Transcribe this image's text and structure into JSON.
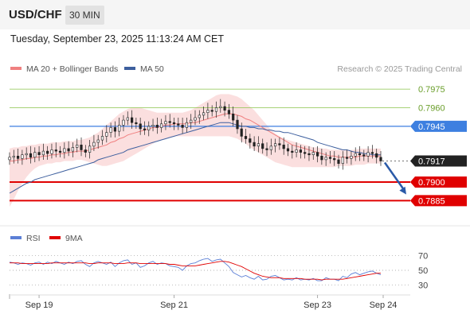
{
  "header": {
    "symbol": "USD/CHF",
    "interval": "30 MIN",
    "datetime": "Tuesday, September 23, 2025 11:13:24 AM CET"
  },
  "colors": {
    "bollinger": "#f4a3a3",
    "ma20": "#f08080",
    "ma50": "#3d5f9e",
    "resistance": "#8bc34a",
    "pivot": "#3d7fe0",
    "support": "#e00000",
    "current": "#222222",
    "up_candle": "#ffffff",
    "down_candle": "#222222",
    "arrow": "#2a5aa8",
    "rsi": "#5b7fd6",
    "rsi_ma": "#e00000"
  },
  "chart_data": [
    {
      "type": "candlestick",
      "legend": [
        {
          "label": "MA 20 + Bollinger Bands",
          "color": "#f08080"
        },
        {
          "label": "MA 50",
          "color": "#3d5f9e"
        }
      ],
      "credit": "Research © 2025 Trading Central",
      "x_ticks": [
        {
          "label": "Sep 19",
          "index": 7
        },
        {
          "label": "Sep 21",
          "index": 39
        },
        {
          "label": "Sep 23",
          "index": 73
        },
        {
          "label": "Sep 24",
          "index": 88
        }
      ],
      "ylim": [
        0.7866,
        0.7986
      ],
      "levels": [
        {
          "value": 0.7975,
          "label": "0.7975",
          "kind": "resistance"
        },
        {
          "value": 0.796,
          "label": "0.7960",
          "kind": "resistance"
        },
        {
          "value": 0.7945,
          "label": "0.7945",
          "kind": "pivot"
        },
        {
          "value": 0.7917,
          "label": "0.7917",
          "kind": "current"
        },
        {
          "value": 0.79,
          "label": "0.7900",
          "kind": "support"
        },
        {
          "value": 0.7885,
          "label": "0.7885",
          "kind": "support"
        }
      ],
      "close": [
        0.792,
        0.7921,
        0.7919,
        0.7922,
        0.7923,
        0.792,
        0.7924,
        0.7922,
        0.7925,
        0.7923,
        0.7926,
        0.7925,
        0.7924,
        0.7927,
        0.7925,
        0.7928,
        0.793,
        0.7926,
        0.7924,
        0.7929,
        0.7932,
        0.7934,
        0.7937,
        0.794,
        0.7944,
        0.7941,
        0.7946,
        0.795,
        0.7952,
        0.7948,
        0.7947,
        0.7943,
        0.7942,
        0.7945,
        0.7946,
        0.7944,
        0.7947,
        0.7949,
        0.7948,
        0.7947,
        0.7946,
        0.7944,
        0.7948,
        0.795,
        0.7952,
        0.7954,
        0.7956,
        0.7958,
        0.7957,
        0.796,
        0.7961,
        0.7958,
        0.7955,
        0.795,
        0.7943,
        0.7937,
        0.7935,
        0.7932,
        0.7929,
        0.7931,
        0.7927,
        0.7926,
        0.7929,
        0.7931,
        0.793,
        0.7927,
        0.7925,
        0.7924,
        0.7926,
        0.7924,
        0.7923,
        0.7922,
        0.7924,
        0.7921,
        0.7918,
        0.792,
        0.7919,
        0.7918,
        0.7915,
        0.792,
        0.7919,
        0.7921,
        0.7923,
        0.7922,
        0.7921,
        0.7924,
        0.7923,
        0.792,
        0.7917
      ],
      "open": [
        0.7918,
        0.792,
        0.7921,
        0.7919,
        0.7922,
        0.7923,
        0.792,
        0.7924,
        0.7922,
        0.7925,
        0.7923,
        0.7926,
        0.7925,
        0.7924,
        0.7927,
        0.7925,
        0.7928,
        0.793,
        0.7926,
        0.7924,
        0.7929,
        0.7932,
        0.7934,
        0.7937,
        0.794,
        0.7944,
        0.7941,
        0.7946,
        0.795,
        0.7952,
        0.7948,
        0.7947,
        0.7943,
        0.7942,
        0.7945,
        0.7946,
        0.7944,
        0.7947,
        0.7949,
        0.7948,
        0.7947,
        0.7946,
        0.7944,
        0.7948,
        0.795,
        0.7952,
        0.7954,
        0.7956,
        0.7958,
        0.7957,
        0.796,
        0.7961,
        0.7958,
        0.7955,
        0.795,
        0.7943,
        0.7937,
        0.7935,
        0.7932,
        0.7929,
        0.7931,
        0.7927,
        0.7926,
        0.7929,
        0.7931,
        0.793,
        0.7927,
        0.7925,
        0.7924,
        0.7926,
        0.7924,
        0.7923,
        0.7922,
        0.7924,
        0.7921,
        0.7918,
        0.792,
        0.7919,
        0.7918,
        0.7915,
        0.792,
        0.7919,
        0.7921,
        0.7923,
        0.7922,
        0.7921,
        0.7924,
        0.7923,
        0.792
      ],
      "ma20": [
        0.7917,
        0.7917,
        0.7918,
        0.7918,
        0.7919,
        0.7919,
        0.792,
        0.792,
        0.7921,
        0.7921,
        0.7922,
        0.7922,
        0.7923,
        0.7923,
        0.7924,
        0.7924,
        0.7925,
        0.7925,
        0.7925,
        0.7926,
        0.7927,
        0.7928,
        0.7929,
        0.793,
        0.7932,
        0.7933,
        0.7935,
        0.7936,
        0.7938,
        0.7939,
        0.794,
        0.7941,
        0.7942,
        0.7943,
        0.7944,
        0.7944,
        0.7945,
        0.7946,
        0.7946,
        0.7947,
        0.7947,
        0.7947,
        0.7947,
        0.7948,
        0.7948,
        0.7949,
        0.795,
        0.7951,
        0.7952,
        0.7953,
        0.7954,
        0.7955,
        0.7955,
        0.7955,
        0.7954,
        0.7953,
        0.7951,
        0.795,
        0.7948,
        0.7946,
        0.7944,
        0.7942,
        0.794,
        0.7938,
        0.7936,
        0.7934,
        0.7932,
        0.793,
        0.7929,
        0.7928,
        0.7927,
        0.7926,
        0.7925,
        0.7924,
        0.7923,
        0.7922,
        0.7921,
        0.7921,
        0.792,
        0.792,
        0.792,
        0.792,
        0.792,
        0.7921,
        0.7921,
        0.7921,
        0.7921,
        0.7921,
        0.7921
      ],
      "bb_upper": [
        0.7927,
        0.7928,
        0.7928,
        0.7929,
        0.7929,
        0.793,
        0.793,
        0.7931,
        0.7931,
        0.7931,
        0.7932,
        0.7932,
        0.7932,
        0.7933,
        0.7933,
        0.7933,
        0.7934,
        0.7934,
        0.7935,
        0.7936,
        0.7938,
        0.794,
        0.7943,
        0.7946,
        0.7949,
        0.7952,
        0.7955,
        0.7957,
        0.7959,
        0.796,
        0.796,
        0.796,
        0.7959,
        0.7958,
        0.7957,
        0.7956,
        0.7956,
        0.7956,
        0.7956,
        0.7956,
        0.7956,
        0.7956,
        0.7957,
        0.7958,
        0.796,
        0.7962,
        0.7964,
        0.7966,
        0.7968,
        0.797,
        0.7971,
        0.7971,
        0.7971,
        0.797,
        0.7969,
        0.7967,
        0.7964,
        0.7961,
        0.7958,
        0.7954,
        0.795,
        0.7946,
        0.7942,
        0.7939,
        0.7937,
        0.7935,
        0.7934,
        0.7933,
        0.7932,
        0.7931,
        0.793,
        0.7929,
        0.7928,
        0.7928,
        0.7927,
        0.7927,
        0.7926,
        0.7926,
        0.7926,
        0.7926,
        0.7926,
        0.7926,
        0.7926,
        0.7927,
        0.7927,
        0.7927,
        0.7927,
        0.7927,
        0.7927
      ],
      "bb_lower": [
        0.788,
        0.7886,
        0.7893,
        0.7899,
        0.7904,
        0.7908,
        0.7911,
        0.7913,
        0.7914,
        0.7915,
        0.7915,
        0.7916,
        0.7916,
        0.7917,
        0.7917,
        0.7917,
        0.7918,
        0.7918,
        0.7917,
        0.7916,
        0.7915,
        0.7914,
        0.7913,
        0.7913,
        0.7914,
        0.7915,
        0.7916,
        0.7917,
        0.7919,
        0.7921,
        0.7923,
        0.7925,
        0.7927,
        0.7929,
        0.7931,
        0.7933,
        0.7934,
        0.7935,
        0.7936,
        0.7937,
        0.7937,
        0.7937,
        0.7937,
        0.7937,
        0.7937,
        0.7937,
        0.7937,
        0.7937,
        0.7937,
        0.7937,
        0.7937,
        0.7937,
        0.7937,
        0.7936,
        0.7935,
        0.7933,
        0.7931,
        0.7928,
        0.7926,
        0.7924,
        0.7922,
        0.792,
        0.7918,
        0.7916,
        0.7915,
        0.7914,
        0.7913,
        0.7912,
        0.7912,
        0.7912,
        0.7912,
        0.7912,
        0.7912,
        0.7912,
        0.7912,
        0.7912,
        0.7912,
        0.7912,
        0.7913,
        0.7913,
        0.7913,
        0.7913,
        0.7914,
        0.7914,
        0.7914,
        0.7915,
        0.7915,
        0.7915,
        0.7915
      ],
      "ma50": [
        0.7891,
        0.7893,
        0.7895,
        0.7897,
        0.7899,
        0.79,
        0.7902,
        0.7903,
        0.7904,
        0.7905,
        0.7906,
        0.7907,
        0.7908,
        0.7909,
        0.791,
        0.7911,
        0.7912,
        0.7913,
        0.7914,
        0.7915,
        0.7916,
        0.7918,
        0.7919,
        0.792,
        0.7921,
        0.7922,
        0.7923,
        0.7924,
        0.7926,
        0.7927,
        0.7928,
        0.7929,
        0.793,
        0.7931,
        0.7932,
        0.7933,
        0.7934,
        0.7935,
        0.7936,
        0.7937,
        0.7938,
        0.7939,
        0.794,
        0.7941,
        0.7942,
        0.7943,
        0.7944,
        0.7945,
        0.7946,
        0.7947,
        0.7948,
        0.7948,
        0.7948,
        0.7947,
        0.7946,
        0.7945,
        0.7945,
        0.7944,
        0.7944,
        0.7943,
        0.7943,
        0.7942,
        0.7942,
        0.7941,
        0.7941,
        0.794,
        0.794,
        0.7939,
        0.7938,
        0.7937,
        0.7936,
        0.7935,
        0.7934,
        0.7932,
        0.7931,
        0.793,
        0.7929,
        0.7928,
        0.7927,
        0.7926,
        0.7926,
        0.7925,
        0.7924,
        0.7924,
        0.7923,
        0.7923,
        0.7922,
        0.7922,
        0.7922
      ],
      "forecast": {
        "from": 0.7917,
        "to": 0.789
      }
    },
    {
      "type": "line",
      "legend": [
        {
          "label": "RSI",
          "color": "#5b7fd6"
        },
        {
          "label": "9MA",
          "color": "#e00000"
        }
      ],
      "ylim": [
        20,
        80
      ],
      "y_ticks": [
        "70",
        "50",
        "30"
      ],
      "y_tick_values": [
        70,
        50,
        30
      ],
      "series": [
        {
          "name": "RSI",
          "values": [
            61,
            60,
            58,
            60,
            59,
            57,
            60,
            61,
            58,
            61,
            59,
            62,
            60,
            58,
            61,
            59,
            62,
            63,
            58,
            55,
            60,
            62,
            60,
            58,
            61,
            55,
            60,
            63,
            64,
            58,
            60,
            54,
            56,
            60,
            62,
            58,
            60,
            59,
            56,
            55,
            54,
            50,
            56,
            59,
            60,
            63,
            65,
            66,
            62,
            64,
            65,
            60,
            55,
            47,
            44,
            41,
            43,
            40,
            38,
            42,
            37,
            38,
            42,
            43,
            40,
            37,
            38,
            37,
            40,
            37,
            38,
            37,
            39,
            36,
            36,
            40,
            38,
            38,
            36,
            42,
            40,
            45,
            47,
            44,
            46,
            48,
            49,
            46,
            44
          ]
        },
        {
          "name": "9MA",
          "values": [
            60,
            60,
            60,
            59,
            59,
            59,
            59,
            59,
            59,
            59,
            60,
            60,
            60,
            60,
            60,
            60,
            60,
            60,
            60,
            59,
            59,
            60,
            60,
            60,
            60,
            59,
            59,
            59,
            60,
            60,
            60,
            59,
            59,
            59,
            59,
            59,
            59,
            59,
            58,
            58,
            57,
            56,
            56,
            56,
            56,
            57,
            58,
            59,
            60,
            61,
            62,
            62,
            61,
            59,
            57,
            55,
            52,
            49,
            46,
            44,
            42,
            41,
            40,
            40,
            40,
            39,
            39,
            39,
            39,
            39,
            38,
            38,
            38,
            38,
            37,
            38,
            38,
            38,
            38,
            38,
            39,
            40,
            41,
            42,
            43,
            44,
            45,
            46,
            46
          ]
        }
      ]
    }
  ]
}
